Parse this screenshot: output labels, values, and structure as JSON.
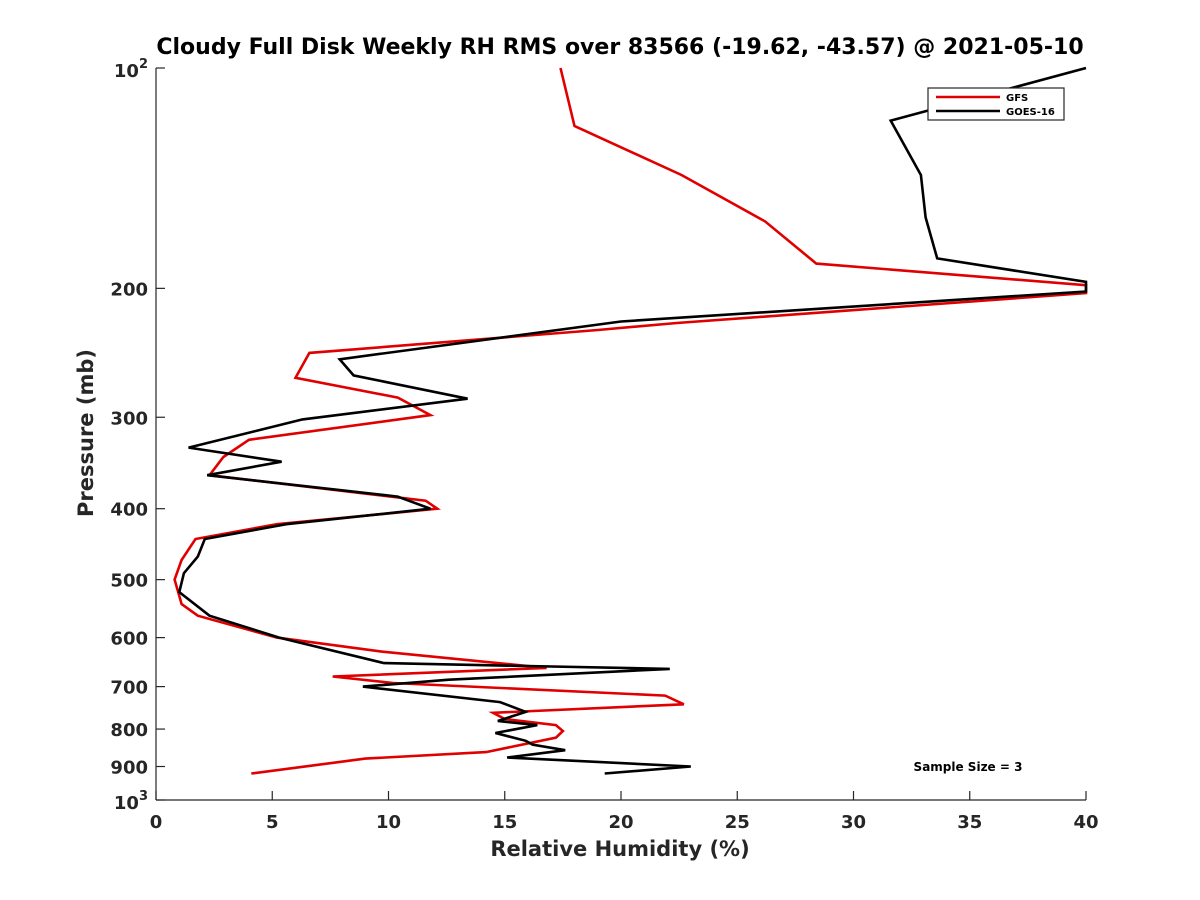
{
  "chart_data": {
    "type": "line",
    "title": "Cloudy Full Disk Weekly RH RMS over 83566 (-19.62, -43.57) @ 2021-05-10",
    "xlabel": "Relative Humidity (%)",
    "ylabel": "Pressure (mb)",
    "xlim": [
      0,
      40
    ],
    "ylim": [
      100,
      1000
    ],
    "y_scale": "log",
    "y_reversed": true,
    "grid": false,
    "legend_position": "top-right",
    "annotation": "Sample Size = 3",
    "x_ticks": [
      {
        "value": 0,
        "label": "0"
      },
      {
        "value": 5,
        "label": "5"
      },
      {
        "value": 10,
        "label": "10"
      },
      {
        "value": 15,
        "label": "15"
      },
      {
        "value": 20,
        "label": "20"
      },
      {
        "value": 25,
        "label": "25"
      },
      {
        "value": 30,
        "label": "30"
      },
      {
        "value": 35,
        "label": "35"
      },
      {
        "value": 40,
        "label": "40"
      }
    ],
    "y_ticks": [
      {
        "value": 100,
        "label": "10",
        "sup": "2"
      },
      {
        "value": 200,
        "label": "200",
        "sup": ""
      },
      {
        "value": 300,
        "label": "300",
        "sup": ""
      },
      {
        "value": 400,
        "label": "400",
        "sup": ""
      },
      {
        "value": 500,
        "label": "500",
        "sup": ""
      },
      {
        "value": 600,
        "label": "600",
        "sup": ""
      },
      {
        "value": 700,
        "label": "700",
        "sup": ""
      },
      {
        "value": 800,
        "label": "800",
        "sup": ""
      },
      {
        "value": 900,
        "label": "900",
        "sup": ""
      },
      {
        "value": 1000,
        "label": "10",
        "sup": "3"
      }
    ],
    "series": [
      {
        "name": "GFS",
        "color": "#e00000",
        "points": [
          [
            17.4,
            100
          ],
          [
            18.0,
            120
          ],
          [
            22.6,
            140
          ],
          [
            26.2,
            162
          ],
          [
            28.4,
            185
          ],
          [
            40.0,
            198
          ],
          [
            40.0,
            203
          ],
          [
            22.4,
            223
          ],
          [
            19.0,
            228
          ],
          [
            6.6,
            245
          ],
          [
            6.0,
            265
          ],
          [
            10.4,
            282
          ],
          [
            11.8,
            298
          ],
          [
            4.0,
            322
          ],
          [
            2.9,
            340
          ],
          [
            2.3,
            360
          ],
          [
            11.6,
            390
          ],
          [
            12.1,
            400
          ],
          [
            5.2,
            420
          ],
          [
            1.7,
            440
          ],
          [
            1.1,
            470
          ],
          [
            0.8,
            500
          ],
          [
            1.1,
            540
          ],
          [
            1.8,
            560
          ],
          [
            5.2,
            600
          ],
          [
            9.7,
            627
          ],
          [
            16.8,
            660
          ],
          [
            7.6,
            678
          ],
          [
            10.2,
            692
          ],
          [
            21.9,
            720
          ],
          [
            22.7,
            740
          ],
          [
            14.5,
            760
          ],
          [
            15.0,
            775
          ],
          [
            17.2,
            790
          ],
          [
            17.5,
            805
          ],
          [
            17.2,
            822
          ],
          [
            14.2,
            860
          ],
          [
            9.0,
            878
          ],
          [
            7.0,
            895
          ],
          [
            4.1,
            920
          ]
        ]
      },
      {
        "name": "GOES-16",
        "color": "#000000",
        "points": [
          [
            40.0,
            100
          ],
          [
            31.6,
            118
          ],
          [
            32.9,
            140
          ],
          [
            33.1,
            160
          ],
          [
            33.6,
            182
          ],
          [
            40.0,
            196
          ],
          [
            40.0,
            202
          ],
          [
            20.0,
            222
          ],
          [
            7.9,
            250
          ],
          [
            8.5,
            263
          ],
          [
            13.4,
            283
          ],
          [
            6.3,
            302
          ],
          [
            1.4,
            330
          ],
          [
            5.4,
            345
          ],
          [
            2.2,
            360
          ],
          [
            10.4,
            385
          ],
          [
            11.8,
            400
          ],
          [
            5.6,
            420
          ],
          [
            2.1,
            440
          ],
          [
            1.8,
            465
          ],
          [
            1.2,
            490
          ],
          [
            1.0,
            520
          ],
          [
            2.3,
            560
          ],
          [
            5.3,
            600
          ],
          [
            9.8,
            650
          ],
          [
            22.1,
            662
          ],
          [
            12.6,
            685
          ],
          [
            8.9,
            700
          ],
          [
            14.8,
            735
          ],
          [
            15.9,
            758
          ],
          [
            14.7,
            780
          ],
          [
            16.4,
            790
          ],
          [
            14.6,
            810
          ],
          [
            15.9,
            830
          ],
          [
            16.2,
            840
          ],
          [
            17.6,
            855
          ],
          [
            15.1,
            875
          ],
          [
            23.0,
            900
          ],
          [
            19.3,
            920
          ]
        ]
      }
    ]
  }
}
